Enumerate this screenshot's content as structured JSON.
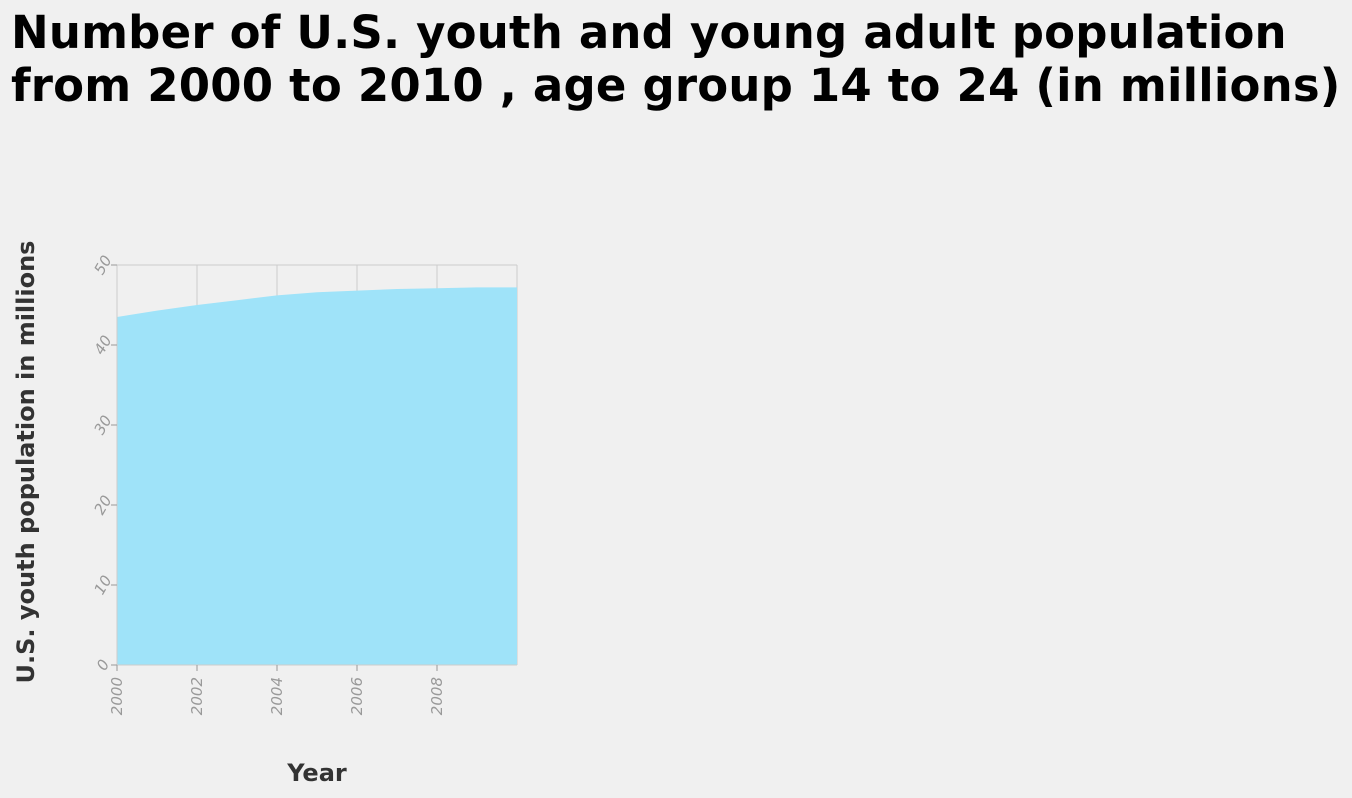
{
  "chart_data": {
    "type": "area",
    "title": "Number of U.S. youth and young adult population from 2000 to 2010 , age group 14 to 24 (in millions)",
    "xlabel": "Year",
    "ylabel": "U.S. youth population in millions",
    "x": [
      2000,
      2001,
      2002,
      2003,
      2004,
      2005,
      2006,
      2007,
      2008,
      2009,
      2010
    ],
    "values": [
      43.5,
      44.3,
      45.0,
      45.6,
      46.2,
      46.6,
      46.8,
      47.0,
      47.1,
      47.2,
      47.2
    ],
    "xlim": [
      2000,
      2010
    ],
    "ylim": [
      0,
      50
    ],
    "xticks": [
      "2000",
      "2002",
      "2004",
      "2006",
      "2008"
    ],
    "yticks": [
      "0",
      "10",
      "20",
      "30",
      "40",
      "50"
    ],
    "fill_color": "#9fe3f9",
    "grid": true,
    "legend": "none"
  }
}
